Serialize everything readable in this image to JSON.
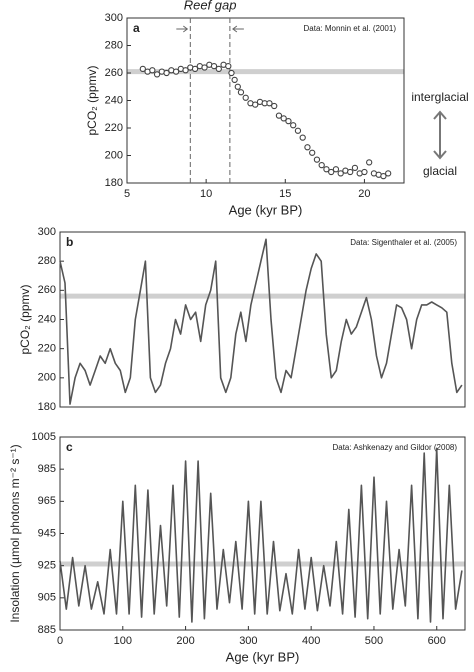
{
  "chart_data": [
    {
      "type": "scatter",
      "panel_label": "a",
      "title": "Reef gap",
      "annotation": "Data: Monnin et al. (2001)",
      "xlabel": "Age (kyr BP)",
      "ylabel": "pCO₂ (ppmv)",
      "xlim": [
        5,
        22.5
      ],
      "xticks": [
        5,
        10,
        15,
        20
      ],
      "ylim": [
        180,
        300
      ],
      "yticks": [
        180,
        200,
        220,
        240,
        260,
        280,
        300
      ],
      "reef_gap": [
        9,
        11.5
      ],
      "reference_band": 261,
      "side_labels": [
        "interglacial",
        "glacial"
      ],
      "color": "#444444",
      "x": [
        6.0,
        6.3,
        6.6,
        6.9,
        7.2,
        7.5,
        7.8,
        8.1,
        8.4,
        8.7,
        9.0,
        9.3,
        9.6,
        9.9,
        10.2,
        10.5,
        10.8,
        11.1,
        11.4,
        11.6,
        11.8,
        12.0,
        12.2,
        12.5,
        12.8,
        13.1,
        13.4,
        13.7,
        14.0,
        14.3,
        14.6,
        14.9,
        15.2,
        15.5,
        15.8,
        16.1,
        16.4,
        16.7,
        17.0,
        17.3,
        17.6,
        17.9,
        18.2,
        18.5,
        18.8,
        19.1,
        19.4,
        19.7,
        20.0,
        20.3,
        20.6,
        20.9,
        21.2,
        21.5
      ],
      "values": [
        263,
        261,
        262,
        259,
        261,
        260,
        262,
        261,
        263,
        262,
        264,
        263,
        265,
        264,
        266,
        265,
        263,
        266,
        265,
        260,
        255,
        250,
        246,
        242,
        238,
        237,
        239,
        238,
        238,
        236,
        229,
        227,
        225,
        222,
        218,
        213,
        206,
        202,
        197,
        193,
        190,
        188,
        190,
        187,
        189,
        188,
        191,
        187,
        188,
        195,
        187,
        186,
        185,
        187
      ]
    },
    {
      "type": "line",
      "panel_label": "b",
      "annotation": "Data: Sigenthaler et al. (2005)",
      "ylabel": "pCO₂ (ppmv)",
      "xlim": [
        0,
        645
      ],
      "ylim": [
        180,
        300
      ],
      "yticks": [
        180,
        200,
        220,
        240,
        260,
        280,
        300
      ],
      "reference_band": 256,
      "color": "#555555",
      "x": [
        0,
        8,
        16,
        24,
        32,
        40,
        48,
        56,
        64,
        72,
        80,
        88,
        96,
        104,
        112,
        120,
        128,
        136,
        144,
        152,
        160,
        168,
        176,
        184,
        192,
        200,
        208,
        216,
        224,
        232,
        240,
        248,
        256,
        264,
        272,
        280,
        288,
        296,
        304,
        312,
        320,
        328,
        336,
        344,
        352,
        360,
        368,
        376,
        384,
        392,
        400,
        408,
        416,
        424,
        432,
        440,
        448,
        456,
        464,
        472,
        480,
        488,
        496,
        504,
        512,
        520,
        528,
        536,
        544,
        552,
        560,
        568,
        576,
        584,
        592,
        600,
        608,
        616,
        624,
        632,
        640
      ],
      "values": [
        280,
        265,
        182,
        200,
        210,
        205,
        195,
        205,
        215,
        210,
        220,
        210,
        205,
        190,
        200,
        240,
        260,
        280,
        200,
        190,
        195,
        210,
        220,
        240,
        230,
        250,
        240,
        245,
        225,
        250,
        260,
        280,
        200,
        190,
        200,
        230,
        245,
        225,
        250,
        265,
        280,
        295,
        240,
        200,
        190,
        205,
        200,
        220,
        240,
        260,
        275,
        285,
        280,
        230,
        200,
        205,
        225,
        240,
        230,
        235,
        245,
        255,
        240,
        215,
        200,
        210,
        230,
        250,
        248,
        240,
        220,
        240,
        250,
        250,
        252,
        250,
        248,
        245,
        210,
        190,
        195
      ]
    },
    {
      "type": "line",
      "panel_label": "c",
      "annotation": "Data: Ashkenazy and Gildor (2008)",
      "xlabel": "Age (kyr BP)",
      "ylabel": "Insolation (µmol photons m⁻² s⁻¹)",
      "xlim": [
        0,
        645
      ],
      "xticks": [
        0,
        100,
        200,
        300,
        400,
        500,
        600
      ],
      "ylim": [
        885,
        1005
      ],
      "yticks": [
        885,
        905,
        925,
        945,
        965,
        985,
        1005
      ],
      "reference_band": 926,
      "color": "#555555",
      "x": [
        0,
        10,
        20,
        30,
        40,
        50,
        60,
        70,
        80,
        90,
        100,
        110,
        120,
        130,
        140,
        150,
        160,
        170,
        180,
        190,
        200,
        210,
        220,
        230,
        240,
        250,
        260,
        270,
        280,
        290,
        300,
        310,
        320,
        330,
        340,
        350,
        360,
        370,
        380,
        390,
        400,
        410,
        420,
        430,
        440,
        450,
        460,
        470,
        480,
        490,
        500,
        510,
        520,
        530,
        540,
        550,
        560,
        570,
        580,
        590,
        600,
        610,
        620,
        630,
        640
      ],
      "values": [
        928,
        898,
        930,
        900,
        925,
        898,
        915,
        895,
        935,
        895,
        965,
        895,
        975,
        893,
        972,
        895,
        950,
        900,
        975,
        893,
        990,
        890,
        990,
        892,
        970,
        898,
        935,
        902,
        940,
        898,
        965,
        895,
        965,
        895,
        940,
        897,
        920,
        895,
        935,
        898,
        930,
        897,
        925,
        900,
        940,
        895,
        960,
        893,
        975,
        892,
        980,
        895,
        965,
        898,
        935,
        900,
        975,
        892,
        995,
        890,
        998,
        892,
        975,
        898,
        922
      ]
    }
  ]
}
